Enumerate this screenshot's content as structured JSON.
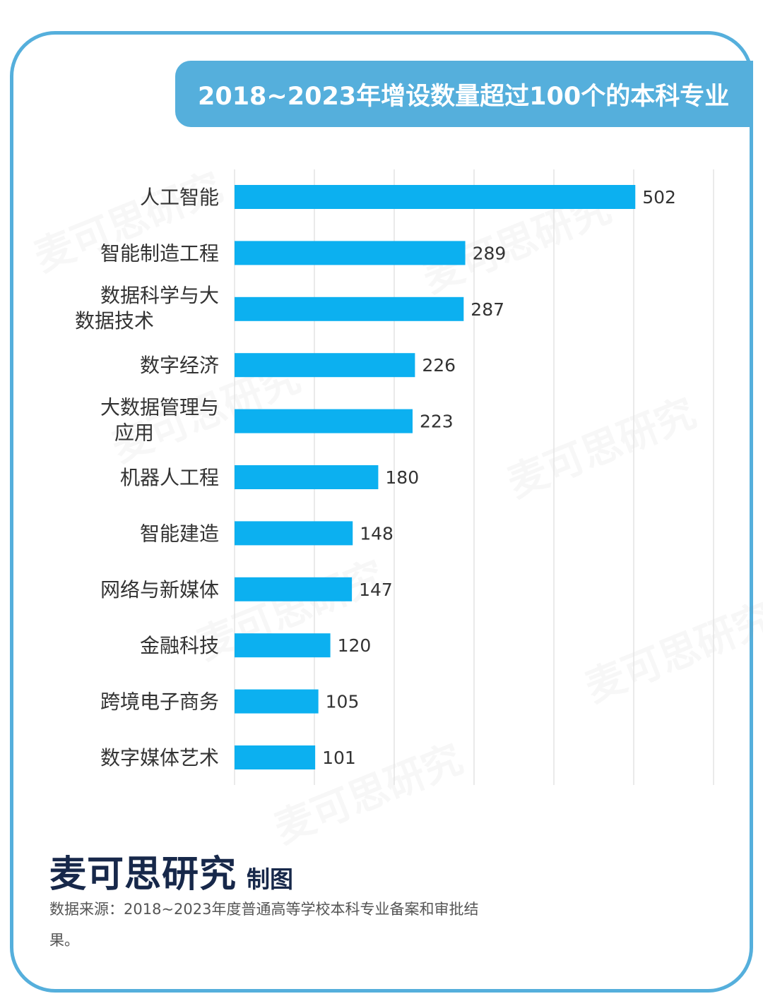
{
  "chart_data": {
    "type": "bar",
    "orientation": "horizontal",
    "title": "2018~2023年增设数量超过100个的本科专业",
    "categories": [
      "人工智能",
      "智能制造工程",
      "数据科学与大数据技术",
      "数字经济",
      "大数据管理与应用",
      "机器人工程",
      "智能建造",
      "网络与新媒体",
      "金融科技",
      "跨境电子商务",
      "数字媒体艺术"
    ],
    "values": [
      502,
      289,
      287,
      226,
      223,
      180,
      148,
      147,
      120,
      105,
      101
    ],
    "xlim": [
      0,
      600
    ],
    "grid": true,
    "data_labels": true,
    "bar_color": "#0cb0f0",
    "grid_color": "#e3e3e3",
    "title_bg_color": "#55afdc",
    "frame_color": "#55afdc"
  },
  "brand": {
    "name": "麦可思研究",
    "suffix": "制图"
  },
  "source": {
    "text": "数据来源：2018~2023年度普通高等学校本科专业备案和审批结果。"
  },
  "watermark": {
    "text": "麦可思研究"
  }
}
